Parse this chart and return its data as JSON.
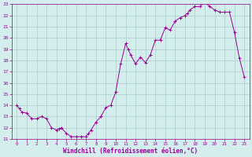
{
  "x_data": [
    0,
    0.25,
    0.5,
    1.0,
    1.5,
    2.0,
    2.5,
    3.0,
    3.5,
    4.0,
    4.25,
    4.5,
    5.0,
    5.5,
    6.0,
    6.5,
    7.0,
    7.25,
    7.5,
    8.0,
    8.5,
    9.0,
    9.5,
    10.0,
    10.5,
    11.0,
    11.25,
    11.5,
    12.0,
    12.5,
    13.0,
    13.5,
    14.0,
    14.5,
    15.0,
    15.5,
    16.0,
    16.5,
    17.0,
    17.25,
    17.5,
    18.0,
    18.5,
    19.0,
    19.5,
    20.0,
    20.5,
    21.0,
    21.5,
    22.0,
    22.5,
    23.0
  ],
  "y_data": [
    14.0,
    13.7,
    13.4,
    13.3,
    12.8,
    12.8,
    13.0,
    12.8,
    12.0,
    11.8,
    11.9,
    12.0,
    11.5,
    11.2,
    11.2,
    11.2,
    11.2,
    11.5,
    11.8,
    12.5,
    13.0,
    13.8,
    14.0,
    15.2,
    17.7,
    19.5,
    19.0,
    18.5,
    17.7,
    18.3,
    17.8,
    18.5,
    19.8,
    19.8,
    20.9,
    20.7,
    21.5,
    21.8,
    22.0,
    22.2,
    22.5,
    22.8,
    22.8,
    23.2,
    22.8,
    22.5,
    22.3,
    22.3,
    22.3,
    20.5,
    18.2,
    16.5
  ],
  "line_color": "#990099",
  "marker_color": "#990099",
  "bg_color": "#d4eeee",
  "grid_color": "#aacccc",
  "xlabel": "Windchill (Refroidissement éolien,°C)",
  "xlim_min": -0.5,
  "xlim_max": 23.5,
  "ylim_min": 11,
  "ylim_max": 23,
  "yticks": [
    11,
    12,
    13,
    14,
    15,
    16,
    17,
    18,
    19,
    20,
    21,
    22,
    23
  ],
  "xticks": [
    0,
    1,
    2,
    3,
    4,
    5,
    6,
    7,
    8,
    9,
    10,
    11,
    12,
    13,
    14,
    15,
    16,
    17,
    18,
    19,
    20,
    21,
    22,
    23
  ]
}
